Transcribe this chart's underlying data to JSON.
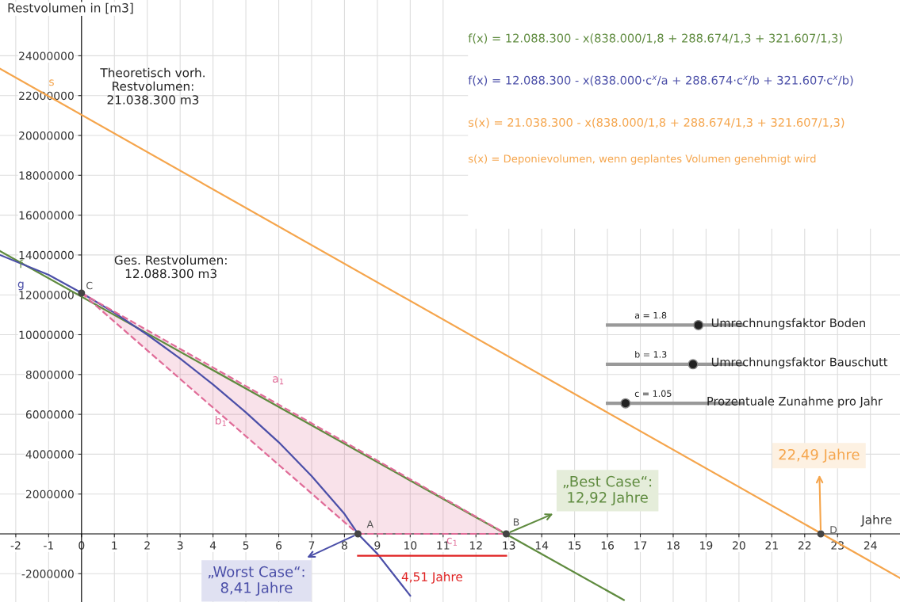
{
  "chart_data": {
    "type": "line",
    "xlabel": "Jahre",
    "ylabel": "Restvolumen in [m3]",
    "xlim": [
      -2.48,
      24.9
    ],
    "ylim": [
      -3420000,
      26800000
    ],
    "xticks": [
      -2,
      -1,
      0,
      1,
      2,
      3,
      4,
      5,
      6,
      7,
      8,
      9,
      10,
      11,
      12,
      13,
      14,
      15,
      16,
      17,
      18,
      19,
      20,
      21,
      22,
      23,
      24
    ],
    "yticks": [
      -2000000,
      2000000,
      4000000,
      6000000,
      8000000,
      10000000,
      12000000,
      14000000,
      16000000,
      18000000,
      20000000,
      22000000,
      24000000
    ],
    "grid": true,
    "legend": false,
    "series": [
      {
        "name": "s",
        "color": "#f5a54c",
        "x": [
          -2.48,
          24.9
        ],
        "values": [
          23350000,
          -2220000
        ]
      },
      {
        "name": "f",
        "color": "#5f8b3f",
        "x": [
          -2.48,
          16.5
        ],
        "values": [
          14200000,
          -3320000
        ]
      },
      {
        "name": "g",
        "color": "#4b4fa8",
        "x": [
          -2.48,
          -1,
          0,
          1,
          2,
          3,
          4,
          5,
          6,
          7,
          8,
          8.41,
          9,
          10
        ],
        "values": [
          14000000,
          13000000,
          12100000,
          11100000,
          10000000,
          8800000,
          7500000,
          6100000,
          4600000,
          2900000,
          1000000,
          0,
          -1000000,
          -3100000
        ]
      },
      {
        "name": "a$_{1}$",
        "line_style": "dashed",
        "color": "#e06c98",
        "x": [
          0,
          8.41,
          12.92
        ],
        "values": [
          12088300,
          4233000,
          0
        ],
        "lower": [
          12088300,
          0,
          0
        ],
        "upper": [
          12088300,
          4233000,
          0
        ]
      },
      {
        "name": "b$_{1}$",
        "line_style": "dashed",
        "color": "#e06c98",
        "x": [
          0,
          8.41
        ],
        "values": [
          12088300,
          0
        ]
      },
      {
        "name": "c$_{1}$",
        "line_style": "dashed",
        "color": "#e06c98",
        "x": [
          8.41,
          12.92
        ],
        "values": [
          0,
          0
        ]
      },
      {
        "type": "scatter",
        "marker": "circle",
        "color": "#444444",
        "x": [
          8.41,
          12.92,
          0,
          22.49
        ],
        "values": [
          0,
          0,
          12088300,
          0
        ]
      },
      {
        "color": "#e02020",
        "x": [
          8.41,
          12.92
        ],
        "values": [
          -1100000,
          -1100000
        ]
      }
    ],
    "annotations": [
      "f(x) = 12.088.300 - x(838.000/1,8 + 288.674/1,3 + 321.607/1,3)",
      "f(x) = 12.088.300 - x(838.000·c$^{x}$/a + 288.674·c$^{x}$/b + 321.607·c$^{x}$/b)",
      "s(x) = 21.038.300 - x(838.000/1,8 + 288.674/1,3 + 321.607/1,3)",
      "s(x) = Deponievolumen, wenn geplantes Volumen genehmigt wird",
      "a = 1.8",
      "Umrechnungsfaktor Boden",
      "b = 1.3",
      "Umrechnungsfaktor Bauschutt",
      "c = 1.05",
      "Prozentuale Zunahme pro Jahr",
      "Theoretisch vorh.\nRestvolumen:\n21.038.300 m3",
      "Ges. Restvolumen:\n12.088.300 m3",
      {
        "text": "A",
        "x": 8.41,
        "y": 0
      },
      {
        "text": "B",
        "x": 12.92,
        "y": 0
      },
      {
        "text": "C",
        "x": 0,
        "y": 12088300
      },
      {
        "text": "D",
        "x": 22.49,
        "y": 0
      },
      {
        "text": "„Worst Case“:\n8,41 Jahre",
        "x": 8.41,
        "y": 0
      },
      {
        "text": "„Best Case“:\n12,92 Jahre",
        "x": 12.92,
        "y": 0
      },
      {
        "text": "22,49 Jahre",
        "x": 22.49,
        "y": 0
      },
      {
        "text": "4,51 Jahre",
        "x": 10.665,
        "y": -1100000
      }
    ]
  }
}
